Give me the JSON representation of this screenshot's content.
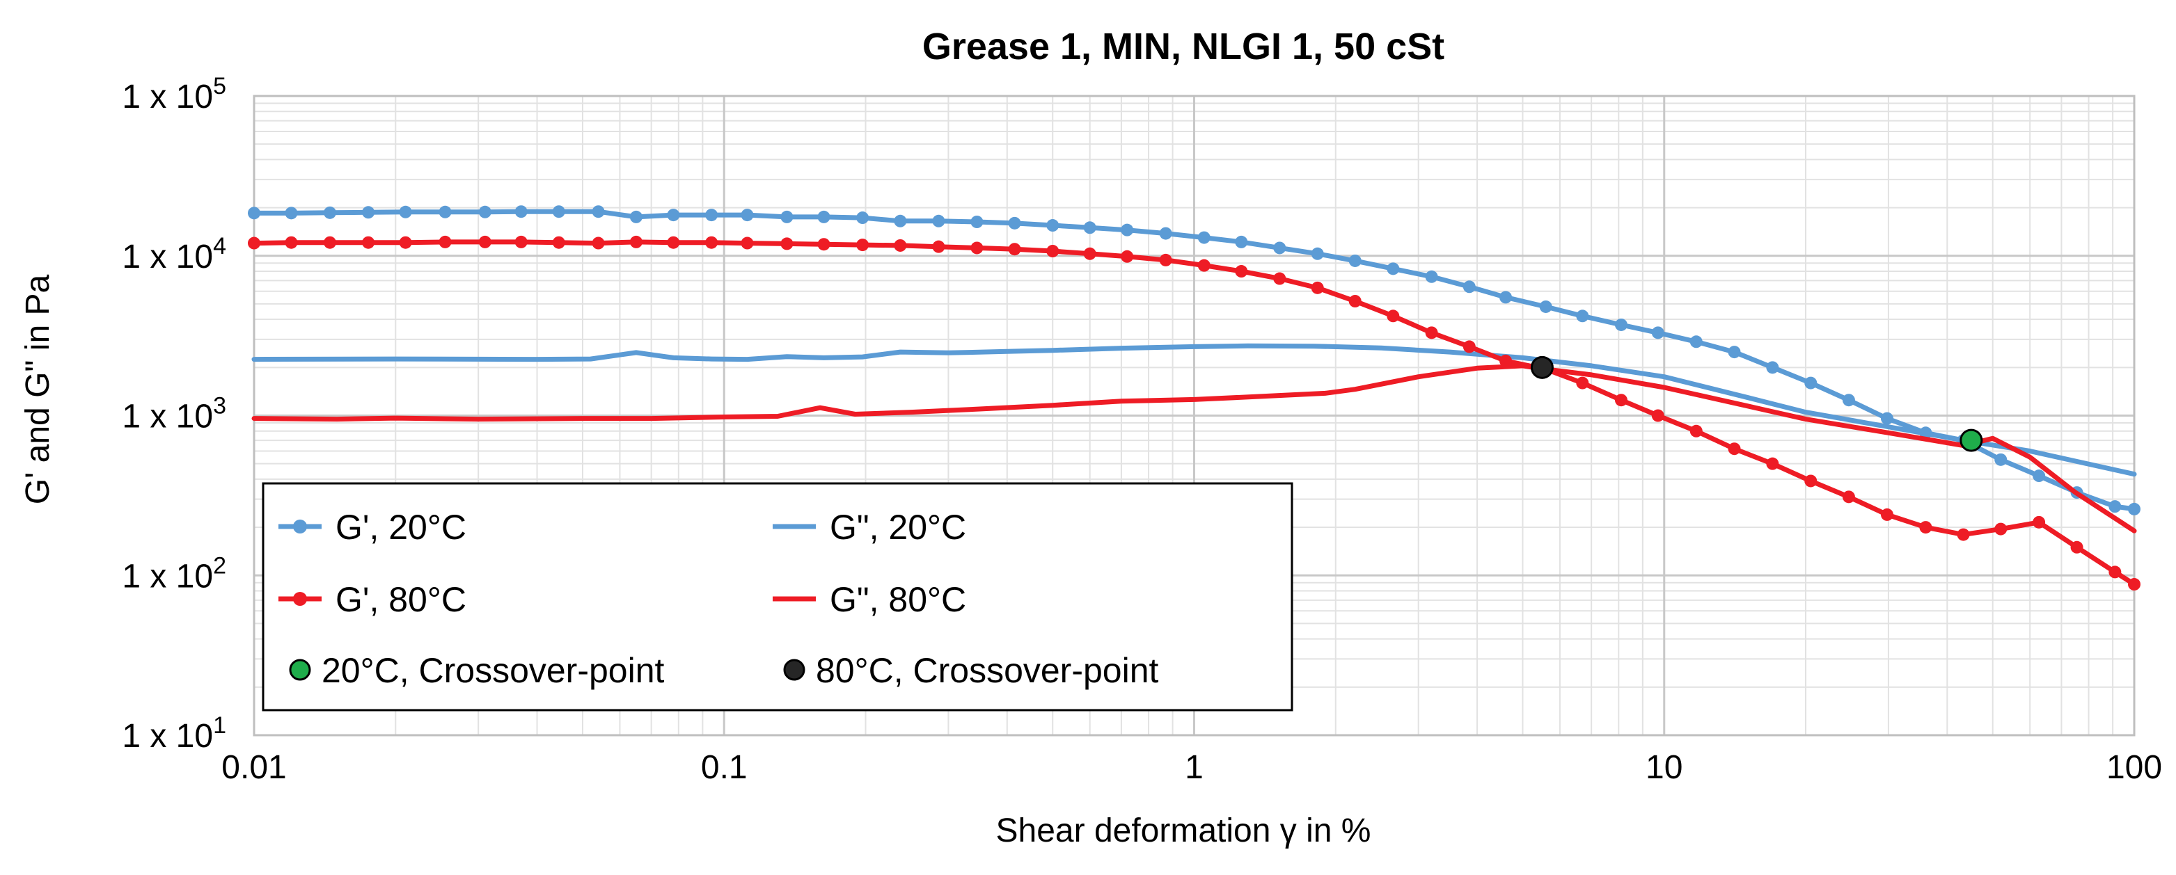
{
  "colors": {
    "g20": "#5b9bd5",
    "g80": "#ee1c25",
    "crossover20": "#1fad4b",
    "crossover80": "#262626",
    "grid_major": "#c8c8c8",
    "grid_minor": "#e2e2e2"
  },
  "chart_data": {
    "type": "line",
    "title": "Grease 1, MIN, NLGI 1, 50 cSt",
    "xlabel": "Shear deformation γ in %",
    "ylabel": "G' and G\" in Pa",
    "xscale": "log",
    "yscale": "log",
    "xlim": [
      0.01,
      100
    ],
    "ylim": [
      10,
      100000
    ],
    "grid": true,
    "x_tick_labels": [
      "0.01",
      "0.1",
      "1",
      "10",
      "100"
    ],
    "x_tick_values": [
      0.01,
      0.1,
      1,
      10,
      100
    ],
    "y_tick_values": [
      10,
      100,
      1000,
      10000,
      100000
    ],
    "y_tick_labels": [
      {
        "base": "1 x 10",
        "exp": "1"
      },
      {
        "base": "1 x 10",
        "exp": "2"
      },
      {
        "base": "1 x 10",
        "exp": "3"
      },
      {
        "base": "1 x 10",
        "exp": "4"
      },
      {
        "base": "1 x 10",
        "exp": "5"
      }
    ],
    "series": [
      {
        "name": "G', 20°C",
        "color_key": "g20",
        "markers": true,
        "points": [
          [
            0.01,
            18500
          ],
          [
            0.012,
            18500
          ],
          [
            0.0145,
            18600
          ],
          [
            0.0175,
            18700
          ],
          [
            0.021,
            18800
          ],
          [
            0.0255,
            18800
          ],
          [
            0.031,
            18800
          ],
          [
            0.037,
            18900
          ],
          [
            0.0445,
            18900
          ],
          [
            0.054,
            18900
          ],
          [
            0.065,
            17500
          ],
          [
            0.078,
            18000
          ],
          [
            0.094,
            18000
          ],
          [
            0.112,
            18000
          ],
          [
            0.136,
            17500
          ],
          [
            0.163,
            17500
          ],
          [
            0.197,
            17300
          ],
          [
            0.237,
            16500
          ],
          [
            0.286,
            16500
          ],
          [
            0.345,
            16300
          ],
          [
            0.415,
            16000
          ],
          [
            0.5,
            15500
          ],
          [
            0.6,
            15000
          ],
          [
            0.72,
            14500
          ],
          [
            0.87,
            13800
          ],
          [
            1.05,
            13000
          ],
          [
            1.26,
            12200
          ],
          [
            1.52,
            11200
          ],
          [
            1.83,
            10300
          ],
          [
            2.2,
            9300
          ],
          [
            2.65,
            8300
          ],
          [
            3.2,
            7400
          ],
          [
            3.85,
            6400
          ],
          [
            4.6,
            5500
          ],
          [
            5.6,
            4800
          ],
          [
            6.7,
            4200
          ],
          [
            8.1,
            3700
          ],
          [
            9.7,
            3300
          ],
          [
            11.7,
            2900
          ],
          [
            14.1,
            2500
          ],
          [
            17,
            2000
          ],
          [
            20.5,
            1600
          ],
          [
            24.7,
            1250
          ],
          [
            29.8,
            960
          ],
          [
            36,
            780
          ],
          [
            43.3,
            700
          ],
          [
            52,
            530
          ],
          [
            62.7,
            420
          ],
          [
            75.5,
            330
          ],
          [
            91,
            270
          ],
          [
            100,
            260
          ]
        ]
      },
      {
        "name": "G\", 20°C",
        "color_key": "g20",
        "markers": false,
        "points": [
          [
            0.01,
            2250
          ],
          [
            0.02,
            2260
          ],
          [
            0.04,
            2250
          ],
          [
            0.052,
            2260
          ],
          [
            0.065,
            2480
          ],
          [
            0.078,
            2300
          ],
          [
            0.094,
            2260
          ],
          [
            0.112,
            2250
          ],
          [
            0.136,
            2340
          ],
          [
            0.163,
            2300
          ],
          [
            0.197,
            2330
          ],
          [
            0.237,
            2500
          ],
          [
            0.3,
            2470
          ],
          [
            0.4,
            2520
          ],
          [
            0.5,
            2560
          ],
          [
            0.7,
            2640
          ],
          [
            1,
            2700
          ],
          [
            1.3,
            2730
          ],
          [
            1.8,
            2720
          ],
          [
            2.5,
            2650
          ],
          [
            3.5,
            2500
          ],
          [
            5,
            2300
          ],
          [
            7,
            2050
          ],
          [
            10,
            1750
          ],
          [
            15,
            1300
          ],
          [
            20,
            1050
          ],
          [
            30,
            850
          ],
          [
            43.3,
            700
          ],
          [
            60,
            600
          ],
          [
            100,
            430
          ]
        ]
      },
      {
        "name": "G', 80°C",
        "color_key": "g80",
        "markers": true,
        "points": [
          [
            0.01,
            12000
          ],
          [
            0.012,
            12100
          ],
          [
            0.0145,
            12100
          ],
          [
            0.0175,
            12100
          ],
          [
            0.021,
            12100
          ],
          [
            0.0255,
            12200
          ],
          [
            0.031,
            12200
          ],
          [
            0.037,
            12200
          ],
          [
            0.0445,
            12100
          ],
          [
            0.054,
            12000
          ],
          [
            0.065,
            12200
          ],
          [
            0.078,
            12100
          ],
          [
            0.094,
            12100
          ],
          [
            0.112,
            12000
          ],
          [
            0.136,
            11900
          ],
          [
            0.163,
            11800
          ],
          [
            0.197,
            11700
          ],
          [
            0.237,
            11600
          ],
          [
            0.286,
            11400
          ],
          [
            0.345,
            11200
          ],
          [
            0.415,
            11000
          ],
          [
            0.5,
            10700
          ],
          [
            0.6,
            10300
          ],
          [
            0.72,
            9900
          ],
          [
            0.87,
            9400
          ],
          [
            1.05,
            8700
          ],
          [
            1.26,
            8000
          ],
          [
            1.52,
            7200
          ],
          [
            1.83,
            6300
          ],
          [
            2.2,
            5200
          ],
          [
            2.65,
            4200
          ],
          [
            3.2,
            3300
          ],
          [
            3.85,
            2700
          ],
          [
            4.6,
            2200
          ],
          [
            5.6,
            1950
          ],
          [
            6.7,
            1600
          ],
          [
            8.1,
            1250
          ],
          [
            9.7,
            1000
          ],
          [
            11.7,
            800
          ],
          [
            14.1,
            620
          ],
          [
            17,
            500
          ],
          [
            20.5,
            390
          ],
          [
            24.7,
            310
          ],
          [
            29.8,
            240
          ],
          [
            36,
            200
          ],
          [
            43.3,
            180
          ],
          [
            52,
            195
          ],
          [
            62.7,
            215
          ],
          [
            75.5,
            150
          ],
          [
            91,
            105
          ],
          [
            100,
            88
          ]
        ]
      },
      {
        "name": "G\", 80°C",
        "color_key": "g80",
        "markers": false,
        "points": [
          [
            0.01,
            960
          ],
          [
            0.015,
            950
          ],
          [
            0.02,
            965
          ],
          [
            0.03,
            950
          ],
          [
            0.05,
            960
          ],
          [
            0.07,
            960
          ],
          [
            0.1,
            980
          ],
          [
            0.13,
            990
          ],
          [
            0.16,
            1120
          ],
          [
            0.19,
            1020
          ],
          [
            0.25,
            1050
          ],
          [
            0.35,
            1100
          ],
          [
            0.5,
            1160
          ],
          [
            0.7,
            1230
          ],
          [
            1,
            1260
          ],
          [
            1.4,
            1320
          ],
          [
            1.9,
            1380
          ],
          [
            2.2,
            1460
          ],
          [
            3,
            1750
          ],
          [
            4,
            1980
          ],
          [
            5,
            2050
          ],
          [
            5.6,
            1950
          ],
          [
            7,
            1800
          ],
          [
            10,
            1500
          ],
          [
            15,
            1150
          ],
          [
            20,
            950
          ],
          [
            30,
            780
          ],
          [
            43.3,
            650
          ],
          [
            50,
            720
          ],
          [
            60,
            550
          ],
          [
            75,
            330
          ],
          [
            100,
            190
          ]
        ]
      }
    ],
    "crossover_points": [
      {
        "name": "20°C, Crossover-point",
        "x": 45,
        "y": 700,
        "color_key": "crossover20"
      },
      {
        "name": "80°C, Crossover-point",
        "x": 5.5,
        "y": 2000,
        "color_key": "crossover80"
      }
    ],
    "legend": {
      "placement": "lower-left",
      "entries": [
        {
          "label": "G', 20°C",
          "kind": "line-marker",
          "color_key": "g20"
        },
        {
          "label": "G\", 20°C",
          "kind": "line",
          "color_key": "g20"
        },
        {
          "label": "G', 80°C",
          "kind": "line-marker",
          "color_key": "g80"
        },
        {
          "label": "G\", 80°C",
          "kind": "line",
          "color_key": "g80"
        },
        {
          "label": "20°C, Crossover-point",
          "kind": "dot",
          "color_key": "crossover20"
        },
        {
          "label": "80°C, Crossover-point",
          "kind": "dot",
          "color_key": "crossover80"
        }
      ]
    }
  }
}
